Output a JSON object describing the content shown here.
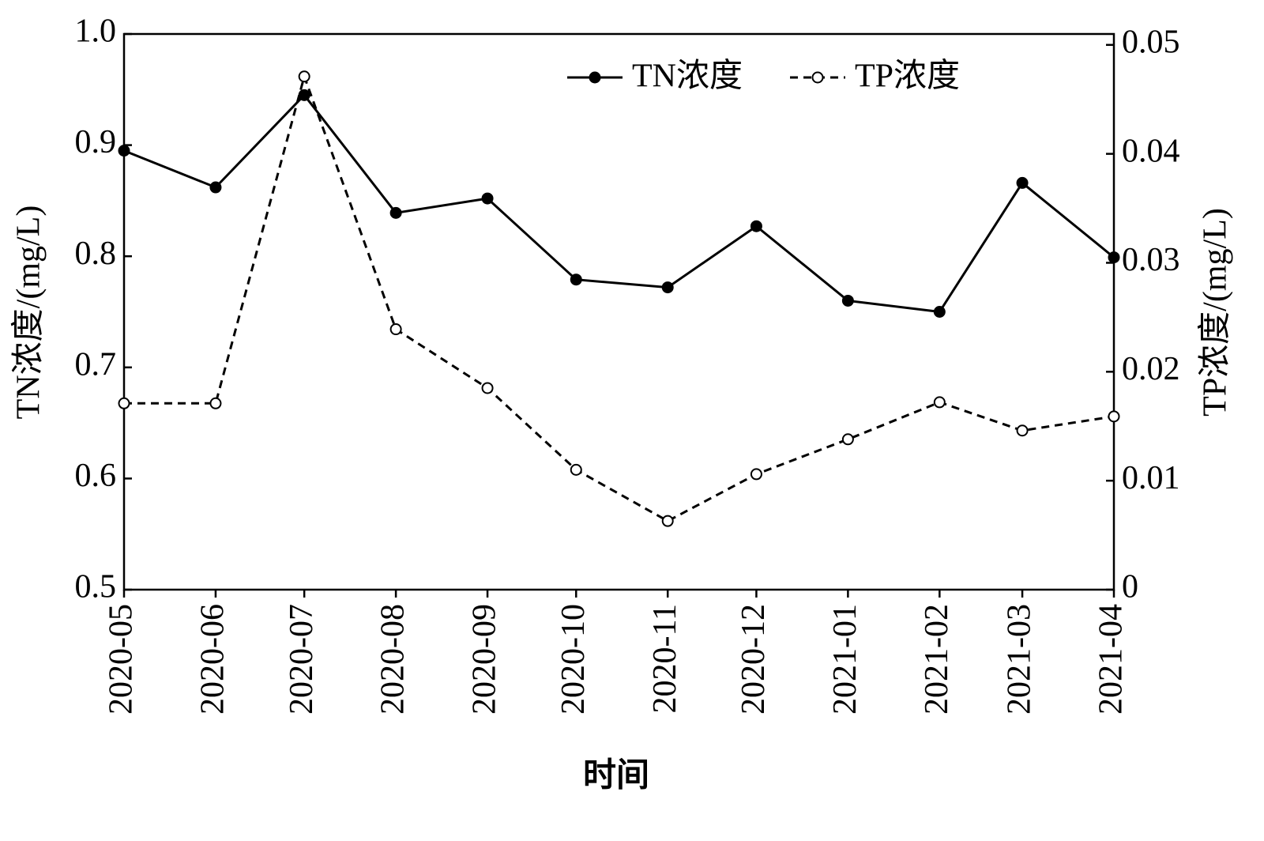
{
  "chart_data": {
    "type": "line",
    "x_label": "时间",
    "y_label": "TN浓度/(mg/L)",
    "y2_label": "TP浓度/(mg/L)",
    "x": [
      "2020-05",
      "2020-06",
      "2020-07",
      "2020-08",
      "2020-09",
      "2020-10",
      "2020-11",
      "2020-12",
      "2021-01",
      "2021-02",
      "2021-03",
      "2021-04"
    ],
    "series": [
      {
        "name": "TN浓度",
        "color": "#000000",
        "marker": "filled",
        "dash": "solid",
        "values": [
          0.895,
          0.862,
          0.945,
          0.839,
          0.852,
          0.779,
          0.772,
          0.827,
          0.76,
          0.75,
          0.866,
          0.799
        ]
      },
      {
        "name": "TP浓度",
        "color": "#000000",
        "marker": "open",
        "dash": "dashed",
        "axis": "y2",
        "values": [
          0.0171,
          0.0171,
          0.0471,
          0.0239,
          0.0185,
          0.011,
          0.0063,
          0.0106,
          0.0138,
          0.0172,
          0.0146,
          0.0159
        ]
      }
    ],
    "ylim": [
      0.5,
      1
    ],
    "yticks": [
      0.5,
      0.6,
      0.7,
      0.8,
      0.9,
      {
        "value": 1,
        "label": "1.0"
      }
    ],
    "y2lim": [
      0,
      0.051
    ],
    "y2ticks": [
      0,
      0.01,
      0.02,
      0.03,
      0.04,
      0.05
    ],
    "legend": "top-right",
    "grid": false
  }
}
